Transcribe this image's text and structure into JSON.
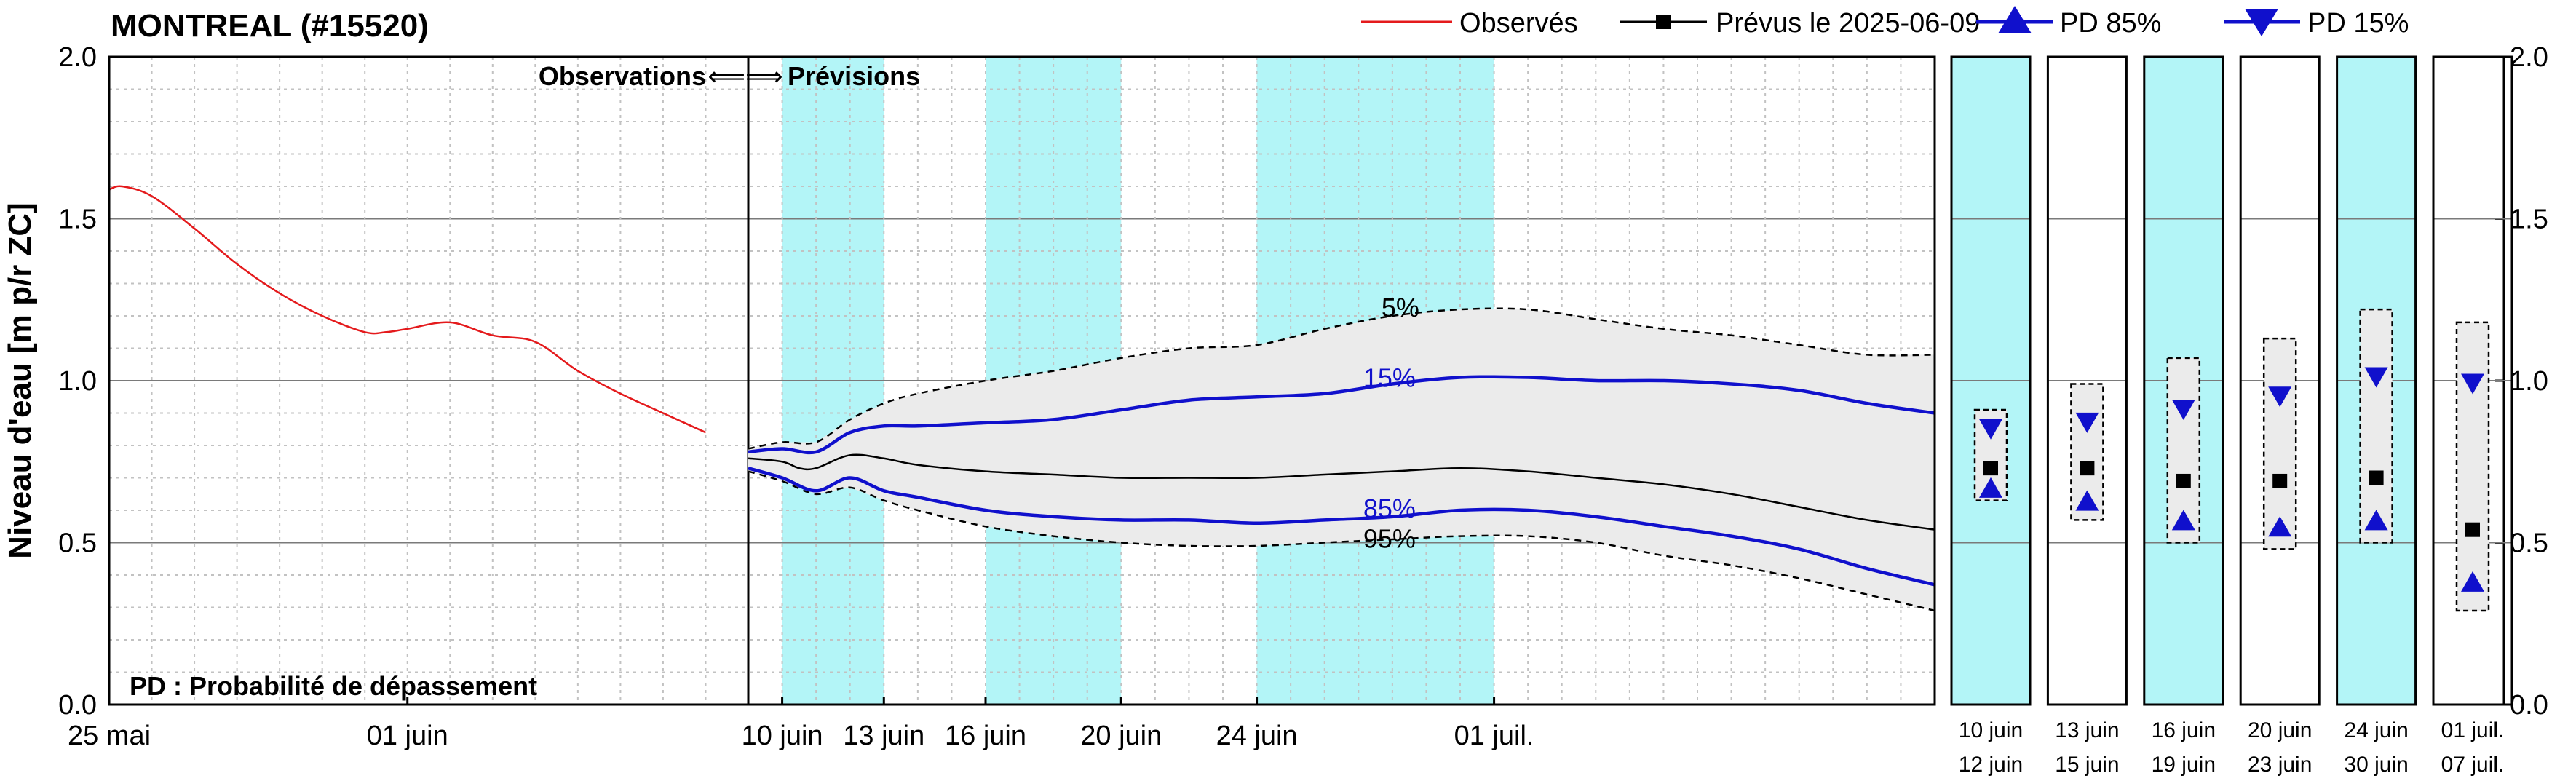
{
  "chart_data": {
    "type": "line",
    "title": "MONTREAL (#15520)",
    "ylabel": "Niveau d'eau [m p/r ZC]",
    "ylim": [
      0.0,
      2.0
    ],
    "y_ticks": [
      "0.0",
      "0.5",
      "1.0",
      "1.5",
      "2.0"
    ],
    "x_unit": "days since 25 mai",
    "xlim": [
      0,
      50
    ],
    "divider_day": 15,
    "x_ticks": [
      {
        "day": 0,
        "label": "25 mai"
      },
      {
        "day": 7,
        "label": "01 juin"
      },
      {
        "day": 16,
        "label": "10 juin"
      },
      {
        "day": 19,
        "label": "13 juin"
      },
      {
        "day": 22,
        "label": "16 juin"
      },
      {
        "day": 26,
        "label": "20 juin"
      },
      {
        "day": 30,
        "label": "24 juin"
      },
      {
        "day": 37,
        "label": "01 juil."
      }
    ],
    "shaded_periods": [
      [
        16,
        19
      ],
      [
        22,
        26
      ],
      [
        30,
        37
      ]
    ],
    "annotations": {
      "divider_left": "Observations",
      "divider_arrow": "⟸⟹",
      "divider_right": "Prévisions",
      "footnote": "PD : Probabilité de dépassement",
      "label_5": "5%",
      "label_15": "15%",
      "label_85": "85%",
      "label_95": "95%"
    },
    "legend": {
      "observed": "Observés",
      "forecast": "Prévus le 2025-06-09",
      "pd85": "PD 85%",
      "pd15": "PD 15%"
    },
    "colors": {
      "observed": "#e41a1c",
      "pd": "#1010cc",
      "band": "#ebebeb",
      "shade": "#b3f5f7",
      "forecast": "#000000"
    },
    "series": [
      {
        "name": "Observés",
        "x": [
          0,
          0.3,
          1,
          2,
          3,
          4,
          5,
          6,
          6.5,
          7,
          8,
          9,
          10,
          11,
          12,
          13,
          14
        ],
        "y": [
          1.59,
          1.6,
          1.57,
          1.47,
          1.36,
          1.27,
          1.2,
          1.15,
          1.15,
          1.16,
          1.18,
          1.14,
          1.12,
          1.03,
          0.96,
          0.9,
          0.84
        ]
      },
      {
        "name": "Prévus le 2025-06-09",
        "x": [
          15,
          16,
          16.5,
          17,
          18,
          19,
          20,
          22,
          24,
          26,
          28,
          30,
          32,
          34,
          36,
          38,
          40,
          42,
          44,
          46,
          48,
          50
        ],
        "y": [
          0.76,
          0.75,
          0.73,
          0.73,
          0.77,
          0.76,
          0.74,
          0.72,
          0.71,
          0.7,
          0.7,
          0.7,
          0.71,
          0.72,
          0.73,
          0.72,
          0.7,
          0.68,
          0.65,
          0.61,
          0.57,
          0.54
        ]
      },
      {
        "name": "PD 15%",
        "x": [
          15,
          16,
          17,
          18,
          19,
          20,
          22,
          24,
          26,
          28,
          30,
          32,
          34,
          36,
          38,
          40,
          42,
          44,
          46,
          48,
          50
        ],
        "y": [
          0.78,
          0.79,
          0.78,
          0.84,
          0.86,
          0.86,
          0.87,
          0.88,
          0.91,
          0.94,
          0.95,
          0.96,
          0.99,
          1.01,
          1.01,
          1.0,
          1.0,
          0.99,
          0.97,
          0.93,
          0.9
        ]
      },
      {
        "name": "PD 85%",
        "x": [
          15,
          16,
          17,
          18,
          19,
          20,
          22,
          24,
          26,
          28,
          30,
          32,
          34,
          36,
          38,
          40,
          42,
          44,
          46,
          48,
          50
        ],
        "y": [
          0.73,
          0.7,
          0.66,
          0.7,
          0.66,
          0.64,
          0.6,
          0.58,
          0.57,
          0.57,
          0.56,
          0.57,
          0.58,
          0.6,
          0.6,
          0.58,
          0.55,
          0.52,
          0.48,
          0.42,
          0.37
        ]
      },
      {
        "name": "5%",
        "x": [
          15,
          16,
          17,
          18,
          19,
          20,
          22,
          24,
          26,
          28,
          30,
          32,
          34,
          36,
          38,
          40,
          42,
          44,
          46,
          48,
          50
        ],
        "y": [
          0.79,
          0.81,
          0.81,
          0.88,
          0.93,
          0.96,
          1.0,
          1.03,
          1.07,
          1.1,
          1.11,
          1.16,
          1.2,
          1.22,
          1.22,
          1.19,
          1.16,
          1.14,
          1.11,
          1.08,
          1.08
        ]
      },
      {
        "name": "95%",
        "x": [
          15,
          16,
          17,
          18,
          19,
          20,
          22,
          24,
          26,
          28,
          30,
          32,
          34,
          36,
          38,
          40,
          42,
          44,
          46,
          48,
          50
        ],
        "y": [
          0.72,
          0.69,
          0.65,
          0.67,
          0.63,
          0.6,
          0.55,
          0.52,
          0.5,
          0.49,
          0.49,
          0.5,
          0.51,
          0.52,
          0.52,
          0.5,
          0.46,
          0.43,
          0.39,
          0.34,
          0.29
        ]
      }
    ],
    "weekly_boxes": [
      {
        "label_top": "10 juin",
        "label_bottom": "12 juin",
        "shaded": true,
        "min": 0.63,
        "max": 0.91,
        "pd15": 0.85,
        "forecast": 0.73,
        "pd85": 0.67
      },
      {
        "label_top": "13 juin",
        "label_bottom": "15 juin",
        "shaded": false,
        "min": 0.57,
        "max": 0.99,
        "pd15": 0.87,
        "forecast": 0.73,
        "pd85": 0.63
      },
      {
        "label_top": "16 juin",
        "label_bottom": "19 juin",
        "shaded": true,
        "min": 0.5,
        "max": 1.07,
        "pd15": 0.91,
        "forecast": 0.69,
        "pd85": 0.57
      },
      {
        "label_top": "20 juin",
        "label_bottom": "23 juin",
        "shaded": false,
        "min": 0.48,
        "max": 1.13,
        "pd15": 0.95,
        "forecast": 0.69,
        "pd85": 0.55
      },
      {
        "label_top": "24 juin",
        "label_bottom": "30 juin",
        "shaded": true,
        "min": 0.5,
        "max": 1.22,
        "pd15": 1.01,
        "forecast": 0.7,
        "pd85": 0.57
      },
      {
        "label_top": "01 juil.",
        "label_bottom": "07 juil.",
        "shaded": false,
        "min": 0.29,
        "max": 1.18,
        "pd15": 0.99,
        "forecast": 0.54,
        "pd85": 0.38
      }
    ]
  }
}
